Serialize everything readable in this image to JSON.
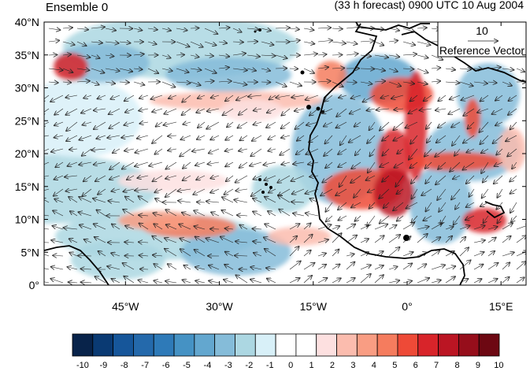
{
  "titles": {
    "left": "Ensemble 0",
    "right": "(33 h forecast) 0900 UTC 10 Aug 2004"
  },
  "reference_vector": {
    "magnitude": "10",
    "label": "Reference Vector"
  },
  "axes": {
    "lat_labels": [
      "40°N",
      "35°N",
      "30°N",
      "25°N",
      "20°N",
      "15°N",
      "10°N",
      "5°N",
      "0°"
    ],
    "lon_labels": [
      "45°W",
      "30°W",
      "15°W",
      "0°",
      "15°E"
    ]
  },
  "colorbar": {
    "labels": [
      "-10",
      "-9",
      "-8",
      "-7",
      "-6",
      "-5",
      "-4",
      "-3",
      "-2",
      "-1",
      "0",
      "1",
      "2",
      "3",
      "4",
      "5",
      "6",
      "7",
      "8",
      "9",
      "10"
    ],
    "colors": [
      "#08234a",
      "#0a3a73",
      "#16569a",
      "#2469ab",
      "#2e7ab8",
      "#4592c4",
      "#63a7cf",
      "#85bcd9",
      "#acd7e2",
      "#d8f0f8",
      "#ffffff",
      "#ffffff",
      "#fde0e0",
      "#fbbcae",
      "#f99d83",
      "#f57c5e",
      "#ee4a37",
      "#d8242a",
      "#bb1523",
      "#960e1b",
      "#6d0812"
    ]
  },
  "map_extent": {
    "lon_min": -58,
    "lon_max": 19,
    "lat_min": 0,
    "lat_max": 40
  }
}
